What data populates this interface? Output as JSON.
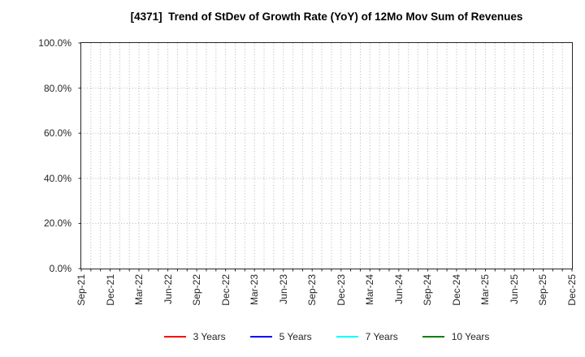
{
  "chart_data": {
    "type": "line",
    "title": "[4371]  Trend of StDev of Growth Rate (YoY) of 12Mo Mov Sum of Revenues",
    "xlabel": "",
    "ylabel": "",
    "ylim": [
      0,
      100
    ],
    "y_unit": "percent",
    "y_tick_labels": [
      "0.0%",
      "20.0%",
      "40.0%",
      "60.0%",
      "80.0%",
      "100.0%"
    ],
    "x_tick_labels": [
      "Sep-21",
      "Dec-21",
      "Mar-22",
      "Jun-22",
      "Sep-22",
      "Dec-22",
      "Mar-23",
      "Jun-23",
      "Sep-23",
      "Dec-23",
      "Mar-24",
      "Jun-24",
      "Sep-24",
      "Dec-24",
      "Mar-25",
      "Jun-25",
      "Sep-25",
      "Dec-25"
    ],
    "x_minor_gridlines_per_interval": 3,
    "grid": "dotted",
    "legend_position": "bottom",
    "series": [
      {
        "name": "3 Years",
        "color": "#ff0000",
        "values": []
      },
      {
        "name": "5 Years",
        "color": "#0000ff",
        "values": []
      },
      {
        "name": "7 Years",
        "color": "#00ffff",
        "values": []
      },
      {
        "name": "10 Years",
        "color": "#008000",
        "values": []
      }
    ],
    "colors": {
      "grid": "#b4b4b4",
      "axis": "#262626",
      "tick_text": "#262626",
      "title_text": "#000000",
      "background": "#ffffff"
    }
  }
}
